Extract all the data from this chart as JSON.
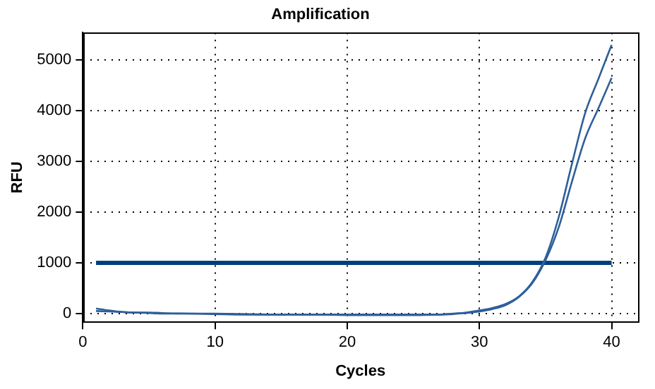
{
  "chart_data": {
    "type": "line",
    "title": "Amplification",
    "xlabel": "Cycles",
    "ylabel": "RFU",
    "xlim": [
      0,
      42
    ],
    "xticks": [
      0,
      10,
      20,
      30,
      40
    ],
    "ylim": [
      -170,
      5530
    ],
    "yticks": [
      0,
      1000,
      2000,
      3000,
      4000,
      5000
    ],
    "grid": true,
    "legend": false,
    "marker": "none",
    "line_style": "solid",
    "series": [
      {
        "color": "#2e5f9a",
        "x": [
          1,
          2,
          3,
          4,
          5,
          6,
          8,
          10,
          12,
          15,
          18,
          20,
          22,
          25,
          27,
          28,
          29,
          30,
          31,
          32,
          33,
          34,
          35,
          36,
          37,
          38,
          39,
          40
        ],
        "values": [
          100,
          60,
          30,
          20,
          10,
          0,
          0,
          -10,
          -20,
          -20,
          -20,
          -30,
          -30,
          -30,
          -20,
          -10,
          20,
          60,
          110,
          190,
          340,
          620,
          1100,
          1900,
          2950,
          3950,
          4620,
          5290
        ]
      },
      {
        "color": "#2e5f9a",
        "x": [
          1,
          2,
          3,
          4,
          5,
          6,
          8,
          10,
          12,
          15,
          18,
          20,
          22,
          25,
          27,
          28,
          29,
          30,
          31,
          32,
          33,
          34,
          35,
          36,
          37,
          38,
          39,
          40
        ],
        "values": [
          50,
          40,
          30,
          20,
          20,
          10,
          0,
          0,
          -10,
          -20,
          -20,
          -20,
          -20,
          -20,
          -20,
          0,
          10,
          40,
          90,
          170,
          330,
          600,
          1050,
          1700,
          2600,
          3450,
          4040,
          4640
        ]
      },
      {
        "color": "#003f7f",
        "x": [
          1,
          40
        ],
        "values": [
          1000,
          1000
        ]
      }
    ]
  }
}
